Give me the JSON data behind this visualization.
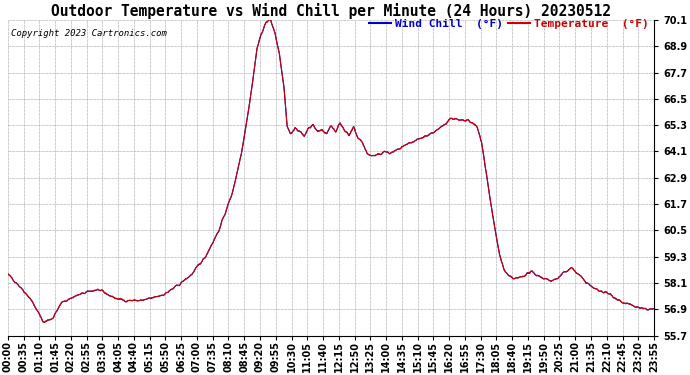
{
  "title": "Outdoor Temperature vs Wind Chill per Minute (24 Hours) 20230512",
  "copyright": "Copyright 2023 Cartronics.com",
  "legend_wind_chill": "Wind Chill  (°F)",
  "legend_temperature": "Temperature  (°F)",
  "wind_chill_color": "#0000cc",
  "temperature_color": "#cc0000",
  "background_color": "#ffffff",
  "grid_color": "#bbbbbb",
  "title_fontsize": 10.5,
  "tick_fontsize": 7,
  "copyright_fontsize": 6.5,
  "legend_fontsize": 8,
  "ylim": [
    55.7,
    70.1
  ],
  "yticks": [
    55.7,
    56.9,
    58.1,
    59.3,
    60.5,
    61.7,
    62.9,
    64.1,
    65.3,
    66.5,
    67.7,
    68.9,
    70.1
  ],
  "xtick_labels": [
    "00:00",
    "00:35",
    "01:10",
    "01:45",
    "02:20",
    "02:55",
    "03:30",
    "04:05",
    "04:40",
    "05:15",
    "05:50",
    "06:25",
    "07:00",
    "07:35",
    "08:10",
    "08:45",
    "09:20",
    "09:55",
    "10:30",
    "11:05",
    "11:40",
    "12:15",
    "12:50",
    "13:25",
    "14:00",
    "14:35",
    "15:10",
    "15:45",
    "16:20",
    "16:55",
    "17:30",
    "18:05",
    "18:40",
    "19:15",
    "19:50",
    "20:25",
    "21:00",
    "21:35",
    "22:10",
    "22:45",
    "23:20",
    "23:55"
  ],
  "num_minutes": 1440,
  "ctrl_points": [
    [
      0,
      58.5
    ],
    [
      20,
      58.1
    ],
    [
      50,
      57.4
    ],
    [
      80,
      56.3
    ],
    [
      100,
      56.5
    ],
    [
      120,
      57.2
    ],
    [
      150,
      57.5
    ],
    [
      180,
      57.7
    ],
    [
      200,
      57.8
    ],
    [
      220,
      57.6
    ],
    [
      240,
      57.4
    ],
    [
      260,
      57.3
    ],
    [
      280,
      57.3
    ],
    [
      300,
      57.3
    ],
    [
      320,
      57.4
    ],
    [
      350,
      57.6
    ],
    [
      380,
      58.0
    ],
    [
      410,
      58.5
    ],
    [
      440,
      59.3
    ],
    [
      470,
      60.5
    ],
    [
      500,
      62.2
    ],
    [
      520,
      64.0
    ],
    [
      540,
      66.5
    ],
    [
      555,
      68.8
    ],
    [
      565,
      69.5
    ],
    [
      575,
      70.0
    ],
    [
      585,
      70.1
    ],
    [
      595,
      69.5
    ],
    [
      605,
      68.5
    ],
    [
      615,
      67.0
    ],
    [
      622,
      65.2
    ],
    [
      630,
      64.9
    ],
    [
      640,
      65.2
    ],
    [
      650,
      65.0
    ],
    [
      660,
      64.8
    ],
    [
      670,
      65.2
    ],
    [
      680,
      65.3
    ],
    [
      690,
      65.0
    ],
    [
      700,
      65.1
    ],
    [
      710,
      64.9
    ],
    [
      720,
      65.3
    ],
    [
      730,
      65.0
    ],
    [
      740,
      65.4
    ],
    [
      750,
      65.1
    ],
    [
      760,
      64.8
    ],
    [
      770,
      65.2
    ],
    [
      780,
      64.7
    ],
    [
      790,
      64.5
    ],
    [
      800,
      64.0
    ],
    [
      810,
      63.9
    ],
    [
      820,
      63.9
    ],
    [
      830,
      64.0
    ],
    [
      840,
      64.1
    ],
    [
      850,
      64.0
    ],
    [
      860,
      64.1
    ],
    [
      870,
      64.2
    ],
    [
      880,
      64.3
    ],
    [
      900,
      64.5
    ],
    [
      920,
      64.7
    ],
    [
      940,
      64.9
    ],
    [
      960,
      65.1
    ],
    [
      975,
      65.4
    ],
    [
      985,
      65.6
    ],
    [
      995,
      65.6
    ],
    [
      1005,
      65.5
    ],
    [
      1015,
      65.5
    ],
    [
      1025,
      65.5
    ],
    [
      1035,
      65.4
    ],
    [
      1045,
      65.2
    ],
    [
      1055,
      64.5
    ],
    [
      1065,
      63.2
    ],
    [
      1075,
      61.8
    ],
    [
      1085,
      60.5
    ],
    [
      1095,
      59.4
    ],
    [
      1105,
      58.7
    ],
    [
      1115,
      58.4
    ],
    [
      1125,
      58.3
    ],
    [
      1135,
      58.3
    ],
    [
      1145,
      58.4
    ],
    [
      1155,
      58.5
    ],
    [
      1165,
      58.6
    ],
    [
      1175,
      58.5
    ],
    [
      1185,
      58.4
    ],
    [
      1195,
      58.3
    ],
    [
      1210,
      58.2
    ],
    [
      1225,
      58.3
    ],
    [
      1240,
      58.6
    ],
    [
      1255,
      58.8
    ],
    [
      1265,
      58.6
    ],
    [
      1275,
      58.4
    ],
    [
      1285,
      58.2
    ],
    [
      1295,
      58.0
    ],
    [
      1310,
      57.8
    ],
    [
      1325,
      57.7
    ],
    [
      1340,
      57.6
    ],
    [
      1355,
      57.4
    ],
    [
      1370,
      57.2
    ],
    [
      1385,
      57.1
    ],
    [
      1400,
      57.0
    ],
    [
      1415,
      56.9
    ],
    [
      1430,
      56.9
    ],
    [
      1439,
      56.9
    ]
  ]
}
